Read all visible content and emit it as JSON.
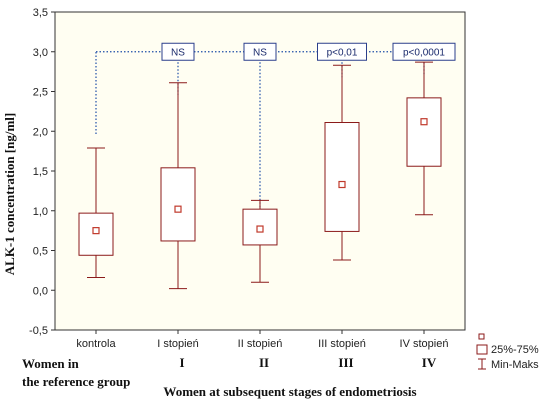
{
  "chart_data": {
    "type": "boxplot",
    "title": "",
    "ylabel": "ALK-1 concentration [ng/ml]",
    "xlabel": "Women at subsequent stages of endometriosis",
    "ylim": [
      -0.5,
      3.5
    ],
    "yticks": [
      "-0,5",
      "0,0",
      "0,5",
      "1,0",
      "1,5",
      "2,0",
      "2,5",
      "3,0",
      "3,5"
    ],
    "ytick_values": [
      -0.5,
      0,
      0.5,
      1.0,
      1.5,
      2.0,
      2.5,
      3.0,
      3.5
    ],
    "categories": [
      "kontrola",
      "I stopień",
      "II stopień",
      "III stopień",
      "IV stopień"
    ],
    "group_labels": [
      "Women in\nthe reference group",
      "I",
      "II",
      "III",
      "IV"
    ],
    "series": [
      {
        "median": 0.75,
        "q1": 0.44,
        "q3": 0.97,
        "min": 0.16,
        "max": 1.79
      },
      {
        "median": 1.02,
        "q1": 0.62,
        "q3": 1.54,
        "min": 0.02,
        "max": 2.61
      },
      {
        "median": 0.77,
        "q1": 0.57,
        "q3": 1.02,
        "min": 0.1,
        "max": 1.13
      },
      {
        "median": 1.33,
        "q1": 0.74,
        "q3": 2.11,
        "min": 0.38,
        "max": 2.83
      },
      {
        "median": 2.12,
        "q1": 1.56,
        "q3": 2.42,
        "min": 0.95,
        "max": 2.87
      }
    ],
    "significance": [
      {
        "target": 1,
        "label": "NS"
      },
      {
        "target": 2,
        "label": "NS"
      },
      {
        "target": 3,
        "label": "p<0,01"
      },
      {
        "target": 4,
        "label": "p<0,0001"
      }
    ],
    "legend": [
      "",
      "25%-75%",
      "Min-Maks"
    ],
    "grid": false,
    "colors": {
      "box": "#8b1a1a",
      "median": "#c0392b",
      "bracket": "#1f4fa8",
      "sigbox": "#2b3f8c"
    }
  },
  "group_labels_line1": "Women in",
  "group_labels_line2": "the reference group",
  "stage_labels": [
    "I",
    "II",
    "III",
    "IV"
  ],
  "xlabel_text": "Women at subsequent stages of endometriosis"
}
